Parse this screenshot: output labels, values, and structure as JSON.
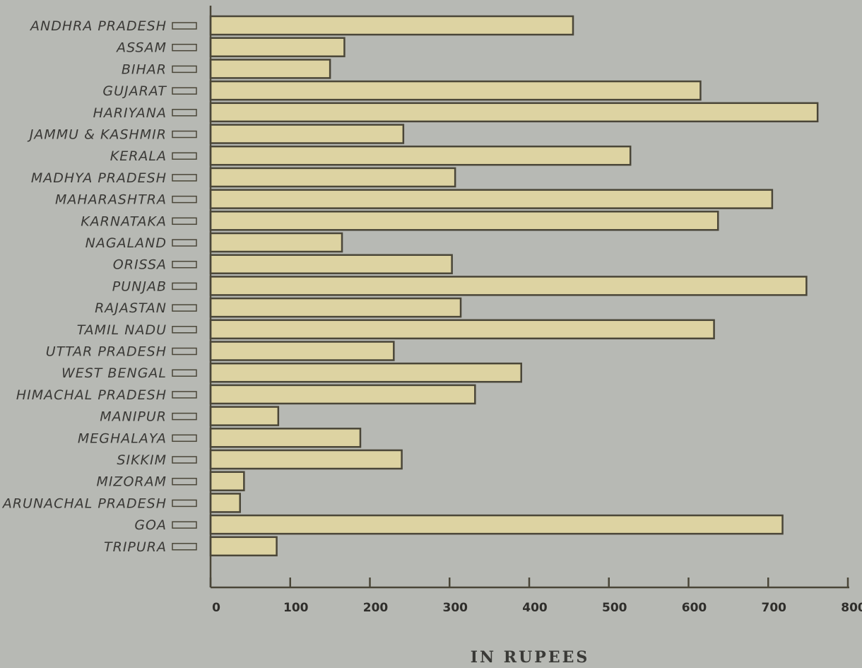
{
  "chart_data": {
    "type": "bar",
    "orientation": "horizontal",
    "title": "",
    "xlabel": "IN RUPEES",
    "ylabel": "",
    "xlim": [
      0,
      800
    ],
    "xticks": [
      "0",
      "100",
      "200",
      "300",
      "400",
      "500",
      "600",
      "700",
      "800"
    ],
    "grid": false,
    "categories": [
      "ANDHRA PRADESH",
      "ASSAM",
      "BIHAR",
      "GUJARAT",
      "HARIYANA",
      "JAMMU & KASHMIR",
      "KERALA",
      "MADHYA PRADESH",
      "MAHARASHTRA",
      "KARNATAKA",
      "NAGALAND",
      "ORISSA",
      "PUNJAB",
      "RAJASTAN",
      "TAMIL NADU",
      "UTTAR PRADESH",
      "WEST BENGAL",
      "HIMACHAL PRADESH",
      "MANIPUR",
      "MEGHALAYA",
      "SIKKIM",
      "MIZORAM",
      "ARUNACHAL PRADESH",
      "GOA",
      "TRIPURA"
    ],
    "values": [
      455,
      168,
      150,
      615,
      762,
      242,
      527,
      307,
      705,
      637,
      165,
      303,
      748,
      314,
      632,
      230,
      390,
      332,
      85,
      188,
      240,
      42,
      37,
      718,
      83
    ],
    "colors": {
      "bar": "#ddd3a2",
      "outline": "#4a4638",
      "background": "#b7b9b4"
    }
  }
}
